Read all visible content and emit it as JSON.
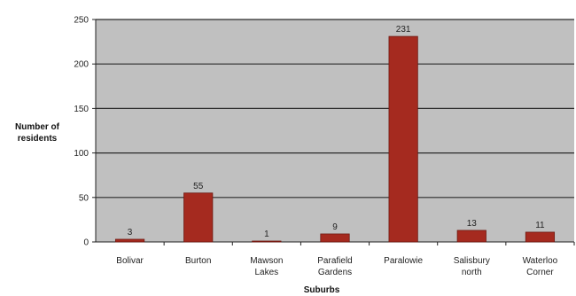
{
  "chart_data": {
    "type": "bar",
    "categories": [
      "Bolivar",
      "Burton",
      "Mawson Lakes",
      "Parafield Gardens",
      "Paralowie",
      "Salisbury north",
      "Waterloo Corner"
    ],
    "category_lines": [
      [
        "Bolivar"
      ],
      [
        "Burton"
      ],
      [
        "Mawson",
        "Lakes"
      ],
      [
        "Parafield",
        "Gardens"
      ],
      [
        "Paralowie"
      ],
      [
        "Salisbury",
        "north"
      ],
      [
        "Waterloo",
        "Corner"
      ]
    ],
    "values": [
      3,
      55,
      1,
      9,
      231,
      13,
      11
    ],
    "ylabel_lines": [
      "Number of",
      "residents"
    ],
    "xlabel": "Suburbs",
    "ylim": [
      0,
      250
    ],
    "yticks": [
      0,
      50,
      100,
      150,
      200,
      250
    ],
    "grid": true,
    "legend": "none",
    "colors": {
      "bar": "#a52a1f",
      "bar_edge": "#6e1a12",
      "plot_bg": "#c0c0c0",
      "grid": "#2a2a2a"
    }
  }
}
